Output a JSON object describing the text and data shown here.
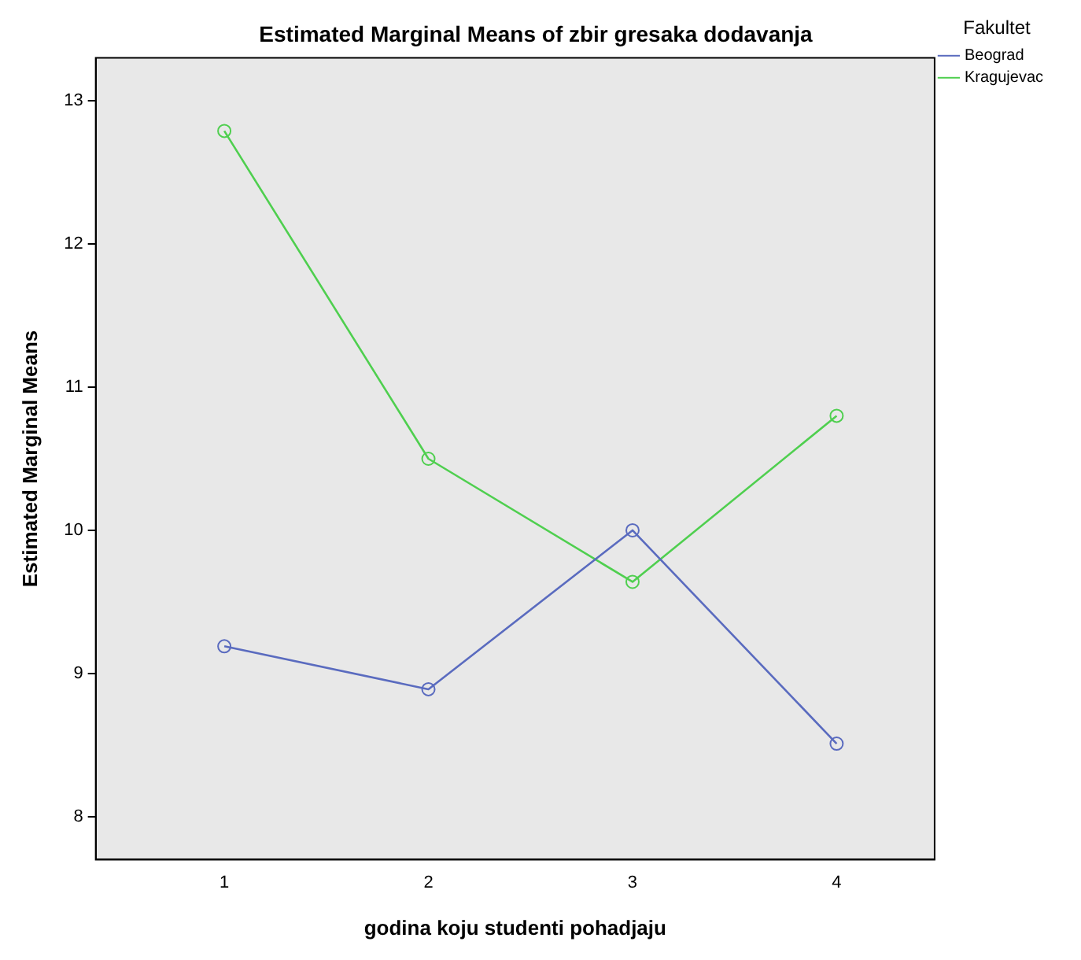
{
  "chart_data": {
    "type": "line",
    "title": "Estimated Marginal Means of zbir gresaka dodavanja",
    "xlabel": "godina koju studenti pohadjaju",
    "ylabel": "Estimated Marginal Means",
    "legend_title": "Fakultet",
    "legend": "top right",
    "marker": "circle",
    "grid": false,
    "x": [
      1,
      2,
      3,
      4
    ],
    "xlim": [
      0.37,
      4.48
    ],
    "xticks": [
      1,
      2,
      3,
      4
    ],
    "ylim": [
      7.7,
      13.3
    ],
    "yticks": [
      8,
      9,
      10,
      11,
      12,
      13
    ],
    "series": [
      {
        "name": "Beograd",
        "color": "#5a6bbf",
        "values": [
          9.19,
          8.89,
          10.0,
          8.51
        ]
      },
      {
        "name": "Kragujevac",
        "color": "#4fcf4f",
        "values": [
          12.79,
          10.5,
          9.64,
          10.8
        ]
      }
    ]
  }
}
